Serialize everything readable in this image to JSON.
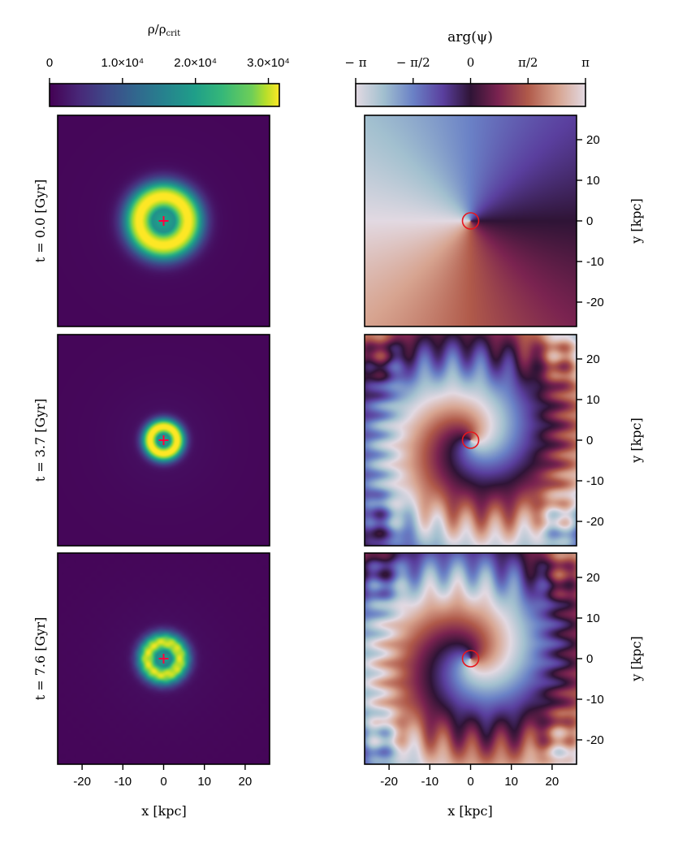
{
  "figure": {
    "density_colorbar": {
      "label": "ρ/ρcrit",
      "label_main": "ρ/ρ",
      "label_sub": "crit",
      "ticks": [
        "0",
        "1.0×10⁴",
        "2.0×10⁴",
        "3.0×10⁴"
      ],
      "tick_values": [
        0,
        10000,
        20000,
        30000
      ],
      "range": [
        0,
        31500
      ],
      "colormap": "viridis"
    },
    "phase_colorbar": {
      "label": "arg(ψ)",
      "ticks": [
        "− π",
        "− π/2",
        "0",
        "π/2",
        "π"
      ],
      "tick_values": [
        -3.1416,
        -1.5708,
        0,
        1.5708,
        3.1416
      ],
      "range": [
        -3.1416,
        3.1416
      ],
      "colormap": "twilight_shifted"
    },
    "row_labels": [
      "t = 0.0 [Gyr]",
      "t = 3.7 [Gyr]",
      "t = 7.6 [Gyr]"
    ],
    "x_axis": {
      "label": "x  [kpc]",
      "ticks": [
        "-20",
        "-10",
        "0",
        "10",
        "20"
      ],
      "tick_values": [
        -20,
        -10,
        0,
        10,
        20
      ],
      "range": [
        -26,
        26
      ]
    },
    "y_axis": {
      "label": "y  [kpc]",
      "ticks": [
        "20",
        "10",
        "0",
        "-10",
        "-20"
      ],
      "tick_values": [
        20,
        10,
        0,
        -10,
        -20
      ],
      "range": [
        -26,
        26
      ]
    },
    "marker_colors": {
      "center_cross": "#ff0040",
      "vortex_circle": "#e8161d"
    }
  },
  "chart_data": [
    {
      "type": "heatmap",
      "title": "",
      "quantity": "ρ/ρcrit",
      "time_gyr": 0.0,
      "xlim": [
        -26,
        26
      ],
      "ylim": [
        -26,
        26
      ],
      "features": {
        "ring_radius_kpc": 6.0,
        "ring_peak": 31000,
        "center_value": 15000,
        "background": 400
      }
    },
    {
      "type": "heatmap",
      "title": "",
      "quantity": "arg(ψ)",
      "time_gyr": 0.0,
      "xlim": [
        -26,
        26
      ],
      "ylim": [
        -26,
        26
      ],
      "features": {
        "vortex_center_kpc": [
          0,
          0
        ],
        "winding": 1,
        "spiral": false
      }
    },
    {
      "type": "heatmap",
      "title": "",
      "quantity": "ρ/ρcrit",
      "time_gyr": 3.7,
      "xlim": [
        -26,
        26
      ],
      "ylim": [
        -26,
        26
      ],
      "features": {
        "ring_radius_kpc": 3.3,
        "ring_peak": 31000,
        "center_value": 15000,
        "background": 400
      }
    },
    {
      "type": "heatmap",
      "title": "",
      "quantity": "arg(ψ)",
      "time_gyr": 3.7,
      "xlim": [
        -26,
        26
      ],
      "ylim": [
        -26,
        26
      ],
      "features": {
        "vortex_center_kpc": [
          0,
          0
        ],
        "winding": 1,
        "spiral": true
      }
    },
    {
      "type": "heatmap",
      "title": "",
      "quantity": "ρ/ρcrit",
      "time_gyr": 7.6,
      "xlim": [
        -26,
        26
      ],
      "ylim": [
        -26,
        26
      ],
      "features": {
        "ring_radius_kpc": 4.0,
        "ring_peak": 28000,
        "center_value": 14000,
        "background": 400
      }
    },
    {
      "type": "heatmap",
      "title": "",
      "quantity": "arg(ψ)",
      "time_gyr": 7.6,
      "xlim": [
        -26,
        26
      ],
      "ylim": [
        -26,
        26
      ],
      "features": {
        "vortex_center_kpc": [
          0,
          0
        ],
        "winding": 1,
        "spiral": true
      }
    }
  ]
}
